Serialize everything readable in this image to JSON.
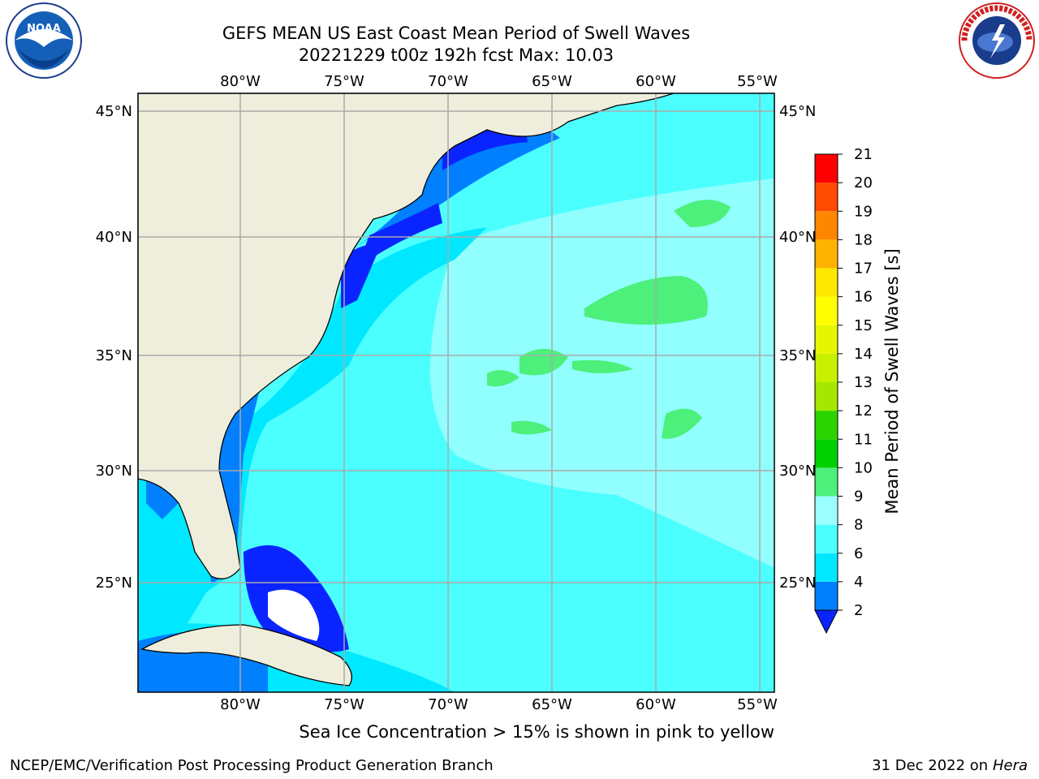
{
  "header": {
    "title_line1": "GEFS MEAN US East Coast Mean Period of Swell Waves",
    "title_line2": "20221229 t00z 192h fcst   Max: 10.03"
  },
  "logos": {
    "left": {
      "icon": "noaa-logo",
      "text": "NOAA",
      "ring_text": "NATIONAL OCEANIC AND ATMOSPHERIC ADMINISTRATION · U.S. DEPARTMENT OF COMMERCE"
    },
    "right": {
      "icon": "nws-logo",
      "ring_text": "NATIONAL WEATHER SERVICE"
    }
  },
  "map": {
    "lon_labels": [
      "80°W",
      "75°W",
      "70°W",
      "65°W",
      "60°W",
      "55°W"
    ],
    "lat_labels": [
      "45°N",
      "40°N",
      "35°N",
      "30°N",
      "25°N"
    ],
    "land_color": "#efeedc",
    "gridline_color": "#aaaaaa"
  },
  "colorbar": {
    "label": "Mean Period of Swell Waves [s]",
    "ticks": [
      "2",
      "4",
      "6",
      "8",
      "9",
      "10",
      "11",
      "12",
      "13",
      "14",
      "15",
      "16",
      "17",
      "18",
      "19",
      "20",
      "21"
    ],
    "colors": [
      "#0a24ff",
      "#0080ff",
      "#00e8ff",
      "#4cffff",
      "#9affff",
      "#4cf07a",
      "#00d000",
      "#2ad400",
      "#a6e600",
      "#c8f000",
      "#e6f500",
      "#ffff00",
      "#ffe800",
      "#ffb300",
      "#ff8600",
      "#ff4a00",
      "#ff0000"
    ]
  },
  "footer": {
    "ice_note": "Sea Ice Concentration > 15% is shown in pink to yellow",
    "credit": "NCEP/EMC/Verification Post Processing Product Generation Branch",
    "date": "31 Dec 2022 on",
    "host": "Hera"
  }
}
